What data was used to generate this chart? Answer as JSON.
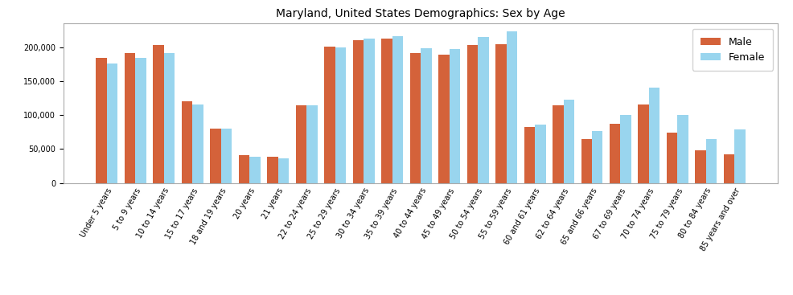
{
  "title": "Maryland, United States Demographics: Sex by Age",
  "categories": [
    "Under 5 years",
    "5 to 9 years",
    "10 to 14 years",
    "15 to 17 years",
    "18 and 19 years",
    "20 years",
    "21 years",
    "22 to 24 years",
    "25 to 29 years",
    "30 to 34 years",
    "35 to 39 years",
    "40 to 44 years",
    "45 to 49 years",
    "50 to 54 years",
    "55 to 59 years",
    "60 and 61 years",
    "62 to 64 years",
    "65 and 66 years",
    "67 to 69 years",
    "70 to 74 years",
    "75 to 79 years",
    "80 to 84 years",
    "85 years and over"
  ],
  "male": [
    184000,
    191000,
    203000,
    120000,
    80000,
    41000,
    38000,
    115000,
    201000,
    211000,
    213000,
    191000,
    189000,
    204000,
    205000,
    83000,
    115000,
    65000,
    87000,
    116000,
    74000,
    48000,
    42000
  ],
  "female": [
    176000,
    184000,
    192000,
    116000,
    80000,
    38000,
    36000,
    115000,
    200000,
    213000,
    216000,
    199000,
    198000,
    215000,
    223000,
    86000,
    123000,
    76000,
    100000,
    141000,
    100000,
    65000,
    79000
  ],
  "male_color": "#d4623a",
  "female_color": "#87ceeb",
  "bar_width": 0.38,
  "ylim": [
    0,
    235000
  ],
  "yticks": [
    0,
    50000,
    100000,
    150000,
    200000
  ],
  "legend_labels": [
    "Male",
    "Female"
  ],
  "figsize": [
    9.87,
    3.67
  ],
  "dpi": 100,
  "title_fontsize": 10,
  "tick_fontsize": 7.0,
  "legend_fontsize": 9
}
